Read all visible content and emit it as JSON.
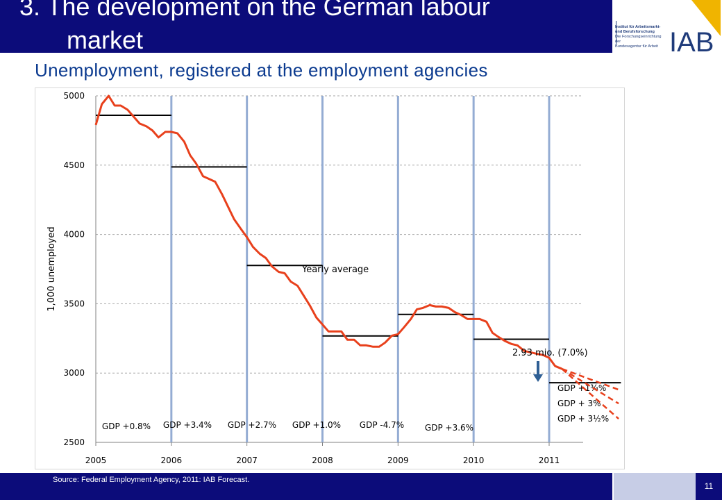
{
  "slide": {
    "title_line1": "3. The development on the German labour",
    "title_line2": "market",
    "subtitle": "Unemployment, registered at the employment agencies",
    "source": "Source: Federal Employment Agency, 2011: IAB Forecast.",
    "page_number": "11"
  },
  "logo": {
    "letters": "IAB",
    "text_line1": "Institut für Arbeitsmarkt-",
    "text_line2": "und Berufsforschung",
    "text_line3": "Die Forschungseinrichtung der",
    "text_line4": "Bundesagentur für Arbeit",
    "colors": {
      "letters": "#1f3b7a",
      "accent": "#f0b400"
    }
  },
  "chart_data": {
    "type": "line",
    "ylabel": "1,000 unemployed",
    "xlabel": "",
    "ylim": [
      2500,
      5000
    ],
    "yticks": [
      2500,
      3000,
      3500,
      4000,
      4500,
      5000
    ],
    "xlim": [
      2005,
      2012
    ],
    "xticks": [
      "2005",
      "2006",
      "2007",
      "2008",
      "2009",
      "2010",
      "2011"
    ],
    "grid": "horizontal dashed",
    "series": [
      {
        "color": "#e8401c",
        "points": [
          [
            2005.0,
            4790
          ],
          [
            2005.08,
            4940
          ],
          [
            2005.17,
            5000
          ],
          [
            2005.25,
            4930
          ],
          [
            2005.33,
            4930
          ],
          [
            2005.42,
            4900
          ],
          [
            2005.5,
            4850
          ],
          [
            2005.58,
            4800
          ],
          [
            2005.67,
            4780
          ],
          [
            2005.75,
            4750
          ],
          [
            2005.83,
            4700
          ],
          [
            2005.92,
            4740
          ],
          [
            2006.0,
            4740
          ],
          [
            2006.08,
            4730
          ],
          [
            2006.17,
            4670
          ],
          [
            2006.25,
            4570
          ],
          [
            2006.33,
            4510
          ],
          [
            2006.42,
            4420
          ],
          [
            2006.5,
            4400
          ],
          [
            2006.58,
            4380
          ],
          [
            2006.67,
            4290
          ],
          [
            2006.75,
            4200
          ],
          [
            2006.83,
            4110
          ],
          [
            2006.92,
            4040
          ],
          [
            2007.0,
            3980
          ],
          [
            2007.08,
            3910
          ],
          [
            2007.17,
            3860
          ],
          [
            2007.25,
            3830
          ],
          [
            2007.33,
            3770
          ],
          [
            2007.42,
            3730
          ],
          [
            2007.5,
            3720
          ],
          [
            2007.58,
            3660
          ],
          [
            2007.67,
            3630
          ],
          [
            2007.75,
            3560
          ],
          [
            2007.83,
            3490
          ],
          [
            2007.92,
            3400
          ],
          [
            2008.0,
            3350
          ],
          [
            2008.08,
            3300
          ],
          [
            2008.17,
            3300
          ],
          [
            2008.25,
            3300
          ],
          [
            2008.33,
            3240
          ],
          [
            2008.42,
            3240
          ],
          [
            2008.5,
            3200
          ],
          [
            2008.58,
            3200
          ],
          [
            2008.67,
            3190
          ],
          [
            2008.75,
            3190
          ],
          [
            2008.83,
            3220
          ],
          [
            2008.92,
            3270
          ],
          [
            2009.0,
            3280
          ],
          [
            2009.08,
            3330
          ],
          [
            2009.17,
            3390
          ],
          [
            2009.25,
            3460
          ],
          [
            2009.33,
            3470
          ],
          [
            2009.42,
            3490
          ],
          [
            2009.5,
            3480
          ],
          [
            2009.58,
            3480
          ],
          [
            2009.67,
            3470
          ],
          [
            2009.75,
            3440
          ],
          [
            2009.83,
            3420
          ],
          [
            2009.92,
            3390
          ],
          [
            2010.0,
            3390
          ],
          [
            2010.08,
            3390
          ],
          [
            2010.17,
            3370
          ],
          [
            2010.25,
            3290
          ],
          [
            2010.33,
            3260
          ],
          [
            2010.42,
            3230
          ],
          [
            2010.5,
            3210
          ],
          [
            2010.58,
            3200
          ],
          [
            2010.67,
            3160
          ],
          [
            2010.75,
            3150
          ],
          [
            2010.83,
            3140
          ],
          [
            2010.92,
            3130
          ],
          [
            2011.0,
            3110
          ],
          [
            2011.08,
            3050
          ],
          [
            2011.17,
            3030
          ]
        ]
      }
    ],
    "forecasts": [
      {
        "name": "GDP +1¾%",
        "color": "#e8401c",
        "points": [
          [
            2011.17,
            3030
          ],
          [
            2011.92,
            2880
          ]
        ]
      },
      {
        "name": "GDP + 3%",
        "color": "#e8401c",
        "points": [
          [
            2011.17,
            3030
          ],
          [
            2011.92,
            2780
          ]
        ]
      },
      {
        "name": "GDP + 3½%",
        "color": "#e8401c",
        "points": [
          [
            2011.17,
            3030
          ],
          [
            2011.92,
            2670
          ]
        ]
      }
    ],
    "yearly_averages": [
      {
        "year": 2005,
        "value": 4860
      },
      {
        "year": 2006,
        "value": 4487
      },
      {
        "year": 2007,
        "value": 3776
      },
      {
        "year": 2008,
        "value": 3268
      },
      {
        "year": 2009,
        "value": 3423
      },
      {
        "year": 2010,
        "value": 3244
      },
      {
        "year": 2011,
        "value": 2930
      }
    ],
    "year_separators": [
      2006,
      2007,
      2008,
      2009,
      2010,
      2011
    ],
    "gdp_labels": [
      "GDP +0.8%",
      "GDP +3.4%",
      "GDP +2.7%",
      "GDP +1.0%",
      "GDP -4.7%",
      "GDP +3.6%"
    ],
    "annotations": {
      "yearly_average": "Yearly average",
      "forecast_value": "2.93 mio. (7.0%)"
    },
    "colors": {
      "line": "#e8401c",
      "separator": "#94acd3",
      "average": "#000000",
      "arrow": "#2f5f94"
    }
  }
}
